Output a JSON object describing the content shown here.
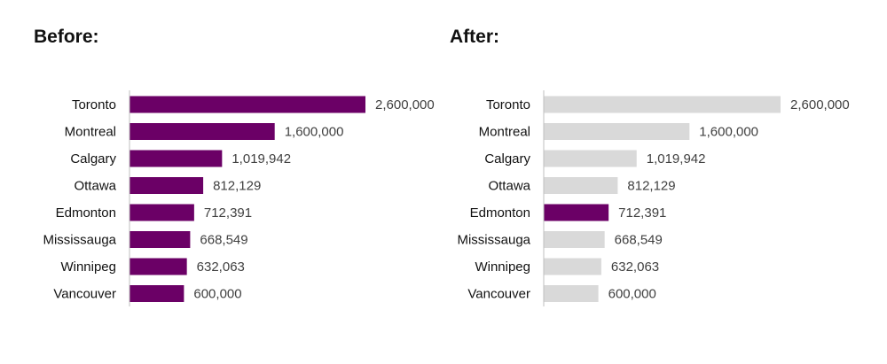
{
  "chart_data": [
    {
      "type": "bar",
      "orientation": "horizontal",
      "title": "Before:",
      "categories": [
        "Toronto",
        "Montreal",
        "Calgary",
        "Ottawa",
        "Edmonton",
        "Mississauga",
        "Winnipeg",
        "Vancouver"
      ],
      "values": [
        2600000,
        1600000,
        1019942,
        812129,
        712391,
        668549,
        632063,
        600000
      ],
      "value_labels": [
        "2,600,000",
        "1,600,000",
        "1,019,942",
        "812,129",
        "712,391",
        "668,549",
        "632,063",
        "600,000"
      ],
      "bar_colors": [
        "#6b0066",
        "#6b0066",
        "#6b0066",
        "#6b0066",
        "#6b0066",
        "#6b0066",
        "#6b0066",
        "#6b0066"
      ],
      "xlim": [
        0,
        2600000
      ],
      "grid": false,
      "legend": "none"
    },
    {
      "type": "bar",
      "orientation": "horizontal",
      "title": "After:",
      "categories": [
        "Toronto",
        "Montreal",
        "Calgary",
        "Ottawa",
        "Edmonton",
        "Mississauga",
        "Winnipeg",
        "Vancouver"
      ],
      "values": [
        2600000,
        1600000,
        1019942,
        812129,
        712391,
        668549,
        632063,
        600000
      ],
      "value_labels": [
        "2,600,000",
        "1,600,000",
        "1,019,942",
        "812,129",
        "712,391",
        "668,549",
        "632,063",
        "600,000"
      ],
      "bar_colors": [
        "#d9d9d9",
        "#d9d9d9",
        "#d9d9d9",
        "#d9d9d9",
        "#6b0066",
        "#d9d9d9",
        "#d9d9d9",
        "#d9d9d9"
      ],
      "xlim": [
        0,
        2600000
      ],
      "grid": false,
      "legend": "none"
    }
  ],
  "colors": {
    "highlight": "#6b0066",
    "muted": "#d9d9d9",
    "axis": "#bfbfbf"
  }
}
